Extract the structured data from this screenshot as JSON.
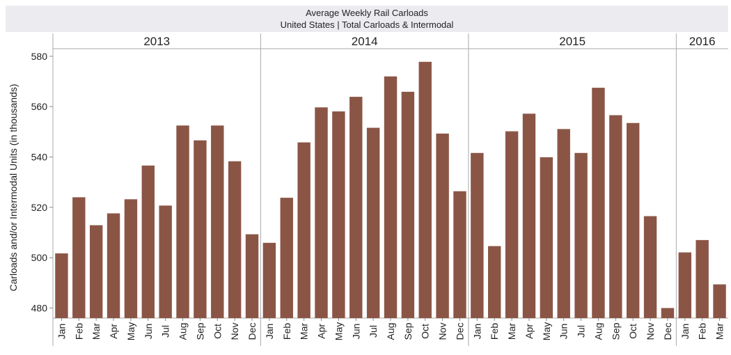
{
  "chart_data": {
    "type": "bar",
    "title": "Average Weekly Rail Carloads",
    "subtitle": "United States | Total Carloads & Intermodal",
    "ylabel": "Carloads and/or Intermodal Units (in thousands)",
    "xlabel": "",
    "ylim": [
      476,
      583
    ],
    "yticks": [
      480,
      500,
      520,
      540,
      560,
      580
    ],
    "bar_color": "#8b5546",
    "groups": [
      {
        "year": "2013",
        "categories": [
          "Jan",
          "Feb",
          "Mar",
          "Apr",
          "May",
          "Jun",
          "Jul",
          "Aug",
          "Sep",
          "Oct",
          "Nov",
          "Dec"
        ],
        "values": [
          501.7,
          524.0,
          512.9,
          517.6,
          523.2,
          536.6,
          520.7,
          552.5,
          546.6,
          552.5,
          538.3,
          509.3
        ]
      },
      {
        "year": "2014",
        "categories": [
          "Jan",
          "Feb",
          "Mar",
          "Apr",
          "May",
          "Jun",
          "Jul",
          "Aug",
          "Sep",
          "Oct",
          "Nov",
          "Dec"
        ],
        "values": [
          505.9,
          523.8,
          545.8,
          559.7,
          558.1,
          563.9,
          551.6,
          572.0,
          565.9,
          577.8,
          549.3,
          526.4
        ]
      },
      {
        "year": "2015",
        "categories": [
          "Jan",
          "Feb",
          "Mar",
          "Apr",
          "May",
          "Jun",
          "Jul",
          "Aug",
          "Sep",
          "Oct",
          "Nov",
          "Dec"
        ],
        "values": [
          541.6,
          504.6,
          550.2,
          557.2,
          539.9,
          551.1,
          541.6,
          567.5,
          556.6,
          553.5,
          516.5,
          480.0
        ]
      },
      {
        "year": "2016",
        "categories": [
          "Jan",
          "Feb",
          "Mar"
        ],
        "values": [
          502.1,
          507.0,
          489.4
        ]
      }
    ]
  }
}
